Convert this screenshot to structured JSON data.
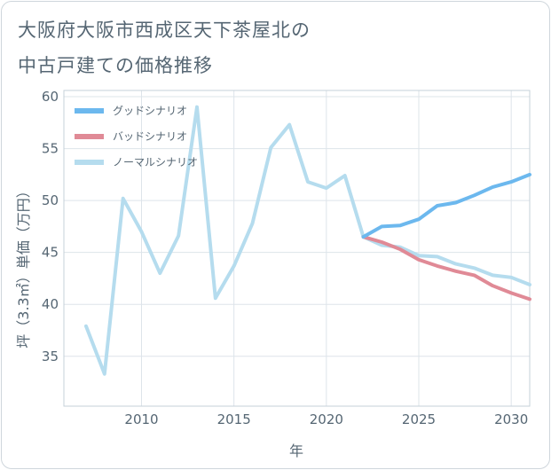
{
  "header": {
    "title_line1": "大阪府大阪市西成区天下茶屋北の",
    "title_line2": "中古戸建ての価格推移"
  },
  "chart_data": {
    "type": "line",
    "title": "大阪府大阪市西成区天下茶屋北の中古戸建ての価格推移",
    "xlabel": "年",
    "ylabel": "坪（3.3㎡）単価（万円）",
    "xlim": [
      2005.8,
      2031
    ],
    "ylim": [
      30.2,
      60.6
    ],
    "xticks": [
      2010,
      2015,
      2020,
      2025,
      2030
    ],
    "yticks": [
      35,
      40,
      45,
      50,
      55,
      60
    ],
    "grid": true,
    "legend_position": "top-left",
    "series": [
      {
        "name": "グッドシナリオ",
        "color": "#6cb8ee",
        "x": [
          2022,
          2023,
          2024,
          2025,
          2026,
          2027,
          2028,
          2029,
          2030,
          2031
        ],
        "values": [
          46.5,
          47.5,
          47.6,
          48.2,
          49.5,
          49.8,
          50.5,
          51.3,
          51.8,
          52.5
        ]
      },
      {
        "name": "バッドシナリオ",
        "color": "#e08a96",
        "x": [
          2022,
          2023,
          2024,
          2025,
          2026,
          2027,
          2028,
          2029,
          2030,
          2031
        ],
        "values": [
          46.5,
          46.0,
          45.3,
          44.3,
          43.7,
          43.2,
          42.8,
          41.8,
          41.1,
          40.5
        ]
      },
      {
        "name": "ノーマルシナリオ",
        "color": "#b5dcee",
        "x": [
          2007,
          2008,
          2009,
          2010,
          2011,
          2012,
          2013,
          2014,
          2015,
          2016,
          2017,
          2018,
          2019,
          2020,
          2021,
          2022,
          2023,
          2024,
          2025,
          2026,
          2027,
          2028,
          2029,
          2030,
          2031
        ],
        "values": [
          37.9,
          33.3,
          50.2,
          47.0,
          43.0,
          46.6,
          59.0,
          40.6,
          43.7,
          47.8,
          55.1,
          57.3,
          51.8,
          51.2,
          52.4,
          46.5,
          45.7,
          45.5,
          44.7,
          44.6,
          43.9,
          43.5,
          42.8,
          42.6,
          41.9
        ]
      }
    ]
  }
}
